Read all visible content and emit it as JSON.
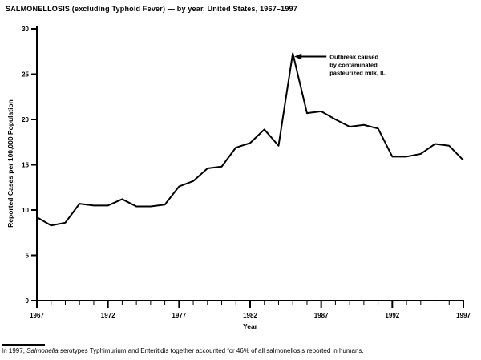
{
  "page": {
    "footnote": {
      "prefix": "In 1997, ",
      "italic_term": "Salmonella",
      "suffix": " serotypes Typhimurium and Enteritidis together accounted for 46% of all salmonellosis reported in humans."
    }
  },
  "chart_data": {
    "type": "line",
    "title": "SALMONELLOSIS (excluding Typhoid Fever) — by year, United States, 1967–1997",
    "xlabel": "Year",
    "ylabel": "Reported Cases per 100,000 Population",
    "xlim": [
      1967,
      1997
    ],
    "ylim": [
      0,
      30
    ],
    "yticks": [
      0,
      5,
      10,
      15,
      20,
      25,
      30
    ],
    "xticks_major": [
      1967,
      1972,
      1977,
      1982,
      1987,
      1992,
      1997
    ],
    "xticks_minor_every": 1,
    "grid": false,
    "legend": "none",
    "line_color": "#000000",
    "background_color": "#ffffff",
    "x": [
      1967,
      1968,
      1969,
      1970,
      1971,
      1972,
      1973,
      1974,
      1975,
      1976,
      1977,
      1978,
      1979,
      1980,
      1981,
      1982,
      1983,
      1984,
      1985,
      1986,
      1987,
      1988,
      1989,
      1990,
      1991,
      1992,
      1993,
      1994,
      1995,
      1996,
      1997
    ],
    "values": [
      9.2,
      8.3,
      8.6,
      10.7,
      10.5,
      10.5,
      11.2,
      10.4,
      10.4,
      10.6,
      12.6,
      13.2,
      14.6,
      14.8,
      16.9,
      17.4,
      18.9,
      17.1,
      27.3,
      20.7,
      20.9,
      20.0,
      19.2,
      19.4,
      19.0,
      15.9,
      15.9,
      16.2,
      17.3,
      17.1,
      15.5
    ],
    "annotation": {
      "lines": [
        "Outbreak caused",
        "by contaminated",
        "pasteurized milk, IL"
      ],
      "year": 1985,
      "value": 27.3
    }
  }
}
